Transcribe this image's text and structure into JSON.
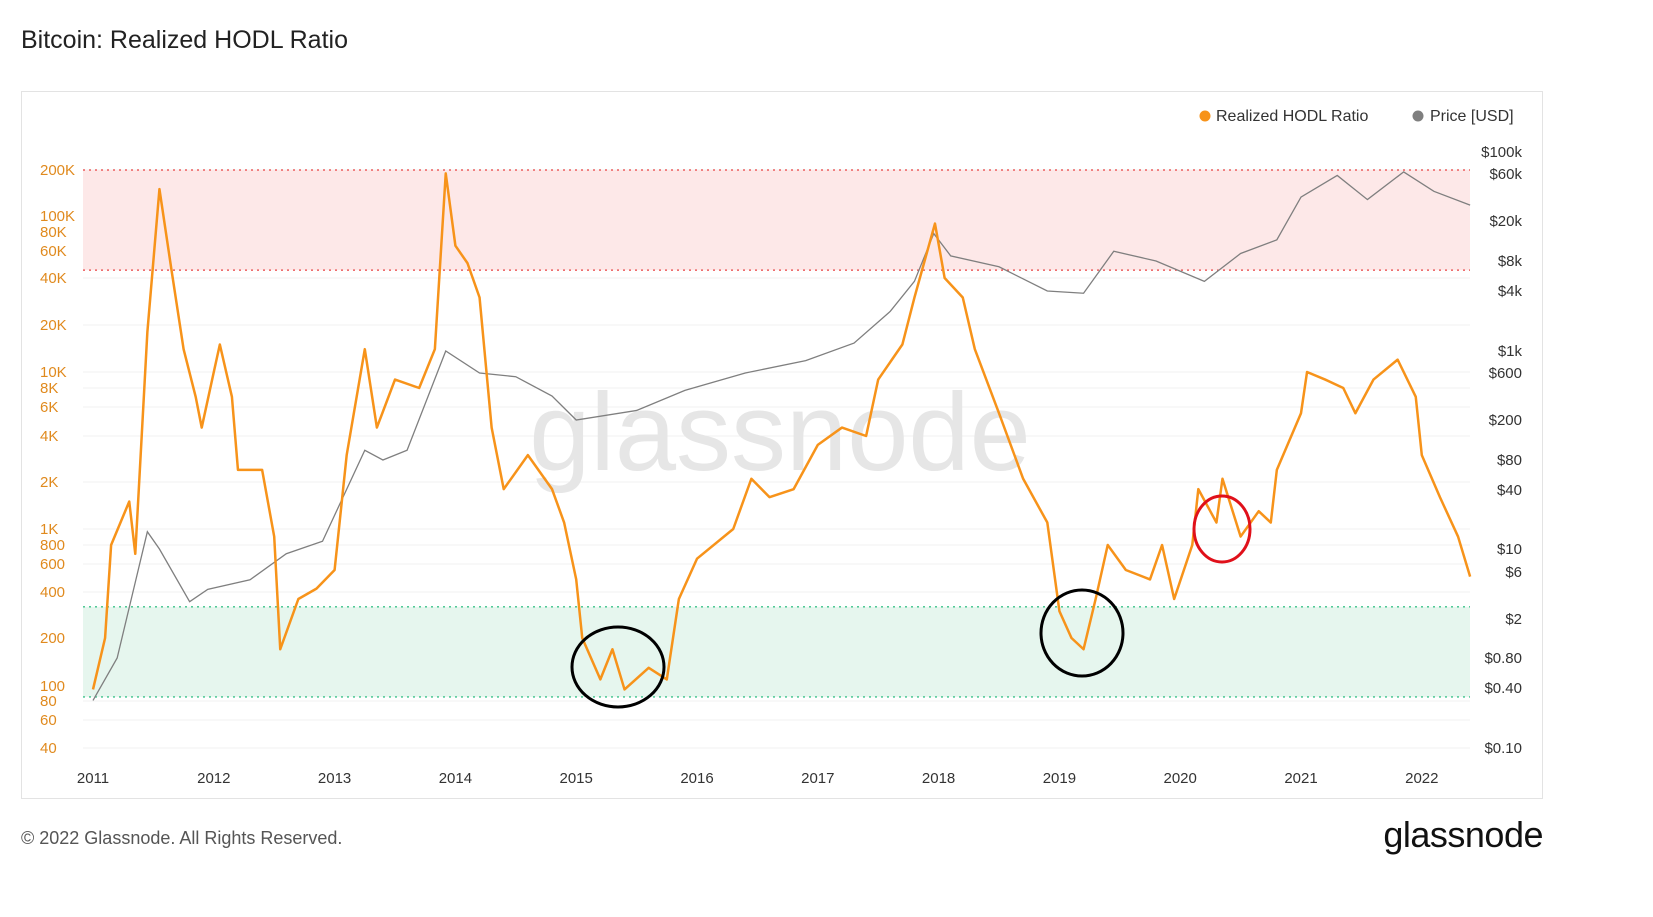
{
  "chart_data": {
    "type": "line",
    "title": "Bitcoin: Realized HODL Ratio",
    "legend_position": "top-right",
    "watermark": "glassnode",
    "colors": {
      "hodl": "#f7931a",
      "price": "#7f7f7f",
      "upper_band": "#fde8e8",
      "lower_band": "#e6f6ee"
    },
    "x_ticks": [
      "2011",
      "2012",
      "2013",
      "2014",
      "2015",
      "2016",
      "2017",
      "2018",
      "2019",
      "2020",
      "2021",
      "2022"
    ],
    "left_axis": {
      "scale": "log",
      "ticks": [
        "200K",
        "100K",
        "80K",
        "60K",
        "40K",
        "20K",
        "10K",
        "8K",
        "6K",
        "4K",
        "2K",
        "1K",
        "800",
        "600",
        "400",
        "200",
        "100",
        "80",
        "60",
        "40"
      ]
    },
    "right_axis": {
      "scale": "log",
      "ticks": [
        "$100k",
        "$60k",
        "$20k",
        "$8k",
        "$4k",
        "$1k",
        "$600",
        "$200",
        "$80",
        "$40",
        "$10",
        "$6",
        "$2",
        "$0.80",
        "$0.40",
        "$0.10"
      ]
    },
    "bands": {
      "upper": [
        45000,
        200000
      ],
      "lower": [
        85,
        320
      ]
    },
    "series": [
      {
        "name": "Realized HODL Ratio",
        "axis": "left",
        "x": [
          2011.0,
          2011.1,
          2011.15,
          2011.3,
          2011.35,
          2011.45,
          2011.55,
          2011.65,
          2011.75,
          2011.85,
          2011.9,
          2012.0,
          2012.05,
          2012.15,
          2012.2,
          2012.4,
          2012.5,
          2012.55,
          2012.7,
          2012.85,
          2013.0,
          2013.1,
          2013.25,
          2013.35,
          2013.5,
          2013.7,
          2013.83,
          2013.92,
          2014.0,
          2014.1,
          2014.2,
          2014.3,
          2014.4,
          2014.6,
          2014.8,
          2014.9,
          2015.0,
          2015.05,
          2015.2,
          2015.3,
          2015.4,
          2015.6,
          2015.75,
          2015.85,
          2016.0,
          2016.3,
          2016.45,
          2016.6,
          2016.8,
          2017.0,
          2017.2,
          2017.4,
          2017.5,
          2017.7,
          2017.8,
          2017.97,
          2018.05,
          2018.2,
          2018.3,
          2018.5,
          2018.7,
          2018.9,
          2019.0,
          2019.1,
          2019.2,
          2019.3,
          2019.4,
          2019.55,
          2019.75,
          2019.85,
          2019.95,
          2020.1,
          2020.15,
          2020.3,
          2020.35,
          2020.5,
          2020.65,
          2020.75,
          2020.8,
          2021.0,
          2021.05,
          2021.2,
          2021.35,
          2021.45,
          2021.6,
          2021.8,
          2021.95,
          2022.0,
          2022.15,
          2022.3,
          2022.4
        ],
        "values": [
          95,
          200,
          800,
          1500,
          700,
          18000,
          150000,
          45000,
          14000,
          7000,
          4500,
          10000,
          15000,
          7000,
          2400,
          2400,
          900,
          170,
          360,
          420,
          550,
          3000,
          14000,
          4500,
          9000,
          8000,
          14000,
          190000,
          65000,
          50000,
          30000,
          4500,
          1800,
          3000,
          1800,
          1100,
          480,
          200,
          110,
          170,
          95,
          130,
          110,
          360,
          650,
          1000,
          2100,
          1600,
          1800,
          3500,
          4500,
          4000,
          9000,
          15000,
          30000,
          90000,
          40000,
          30000,
          14000,
          5500,
          2100,
          1100,
          300,
          200,
          170,
          360,
          800,
          550,
          480,
          800,
          360,
          800,
          1800,
          1100,
          2100,
          900,
          1300,
          1100,
          2400,
          5500,
          10000,
          9000,
          8000,
          5500,
          9000,
          12000,
          7000,
          3000,
          1600,
          900,
          500
        ]
      },
      {
        "name": "Price [USD]",
        "axis": "right",
        "x": [
          2011.0,
          2011.2,
          2011.45,
          2011.55,
          2011.8,
          2011.95,
          2012.3,
          2012.6,
          2012.9,
          2013.25,
          2013.4,
          2013.6,
          2013.92,
          2014.2,
          2014.5,
          2014.8,
          2015.0,
          2015.5,
          2015.9,
          2016.4,
          2016.9,
          2017.3,
          2017.6,
          2017.8,
          2017.96,
          2018.1,
          2018.5,
          2018.9,
          2019.2,
          2019.45,
          2019.8,
          2020.2,
          2020.5,
          2020.8,
          2021.0,
          2021.3,
          2021.55,
          2021.85,
          2022.1,
          2022.4
        ],
        "values": [
          0.3,
          0.8,
          15,
          10,
          3,
          4,
          5,
          9,
          12,
          100,
          80,
          100,
          1000,
          600,
          550,
          350,
          200,
          250,
          400,
          600,
          800,
          1200,
          2500,
          5000,
          15000,
          9000,
          7000,
          4000,
          3800,
          10000,
          8000,
          5000,
          9500,
          13000,
          35000,
          58000,
          33000,
          63000,
          40000,
          29000
        ]
      }
    ]
  },
  "footer": {
    "copyright": "© 2022 Glassnode. All Rights Reserved.",
    "brand": "glassnode"
  }
}
